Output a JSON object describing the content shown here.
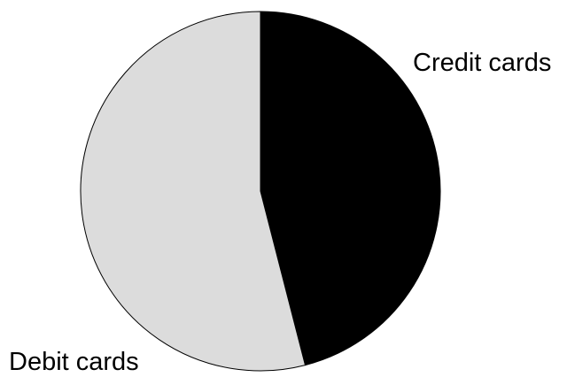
{
  "chart_data": {
    "type": "pie",
    "title": "",
    "slices": [
      {
        "label": "Credit cards",
        "value": 46,
        "color": "#000000"
      },
      {
        "label": "Debit cards",
        "value": 54,
        "color": "#dcdcdc"
      }
    ],
    "start_angle_deg": 0,
    "direction": "clockwise",
    "legend": "none",
    "labels_placement": "outside"
  }
}
